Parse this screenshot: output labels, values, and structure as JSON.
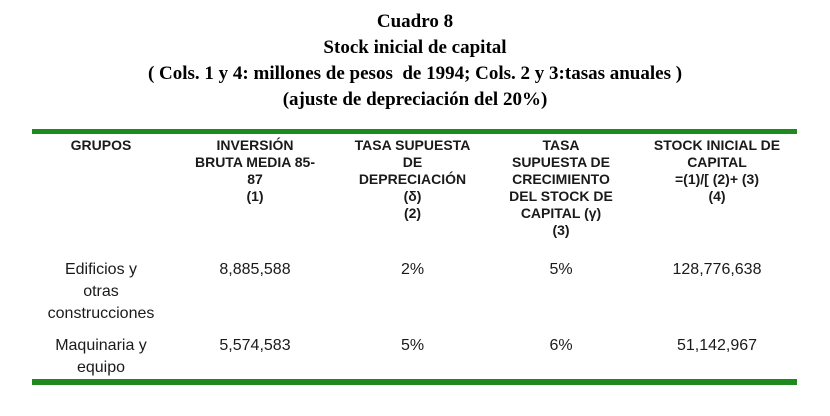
{
  "title": {
    "line1": "Cuadro 8",
    "line2": "Stock inicial de capital",
    "line3": "( Cols. 1 y 4: millones de pesos  de 1994; Cols. 2 y 3:tasas anuales )",
    "line4": "(ajuste de depreciación del 20%)"
  },
  "colors": {
    "table_border_green": "#1e8a1e",
    "text": "#1a1a1a"
  },
  "table": {
    "headers": [
      "GRUPOS",
      "INVERSIÓN\nBRUTA MEDIA 85-\n87\n(1)",
      "TASA SUPUESTA\nDE\nDEPRECIACIÓN\n(δ)\n(2)",
      "TASA\nSUPUESTA DE\nCRECIMIENTO\nDEL STOCK DE\nCAPITAL (γ)\n(3)",
      "STOCK INICIAL DE\nCAPITAL\n=(1)/[ (2)+ (3)\n(4)"
    ],
    "rows": [
      {
        "cells": [
          "Edificios y\notras\nconstrucciones",
          "8,885,588",
          "2%",
          "5%",
          "128,776,638"
        ]
      },
      {
        "cells": [
          "Maquinaria y\nequipo",
          "5,574,583",
          "5%",
          "6%",
          "51,142,967"
        ]
      }
    ]
  }
}
